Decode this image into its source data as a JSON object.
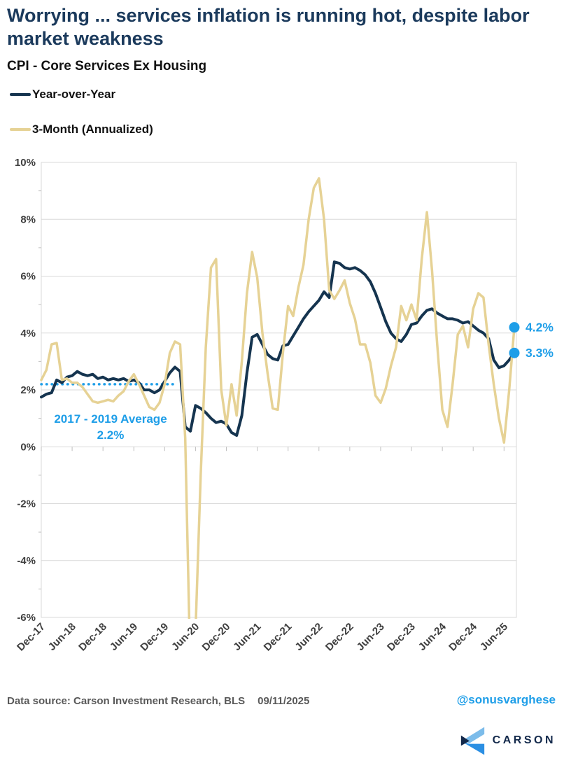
{
  "header": {
    "title": "Worrying ... services inflation is running hot, despite labor market weakness",
    "subtitle": "CPI - Core Services Ex Housing"
  },
  "legend": [
    {
      "label": "Year-over-Year",
      "color": "#15344F"
    },
    {
      "label": "3-Month (Annualized)",
      "color": "#E6D295"
    }
  ],
  "footer": {
    "source": "Data source: Carson Investment Research, BLS",
    "date": "09/11/2025",
    "handle": "@sonusvarghese",
    "logo_text": "CARSON"
  },
  "colors": {
    "title_navy": "#1B3A5C",
    "yoy_line": "#15344F",
    "three_month_line": "#E6D295",
    "accent_blue": "#1E9EE8",
    "gridline": "#D9D9D9",
    "axis_tick": "#BFBFBF",
    "axis_label": "#3F3F3F"
  },
  "chart_data": {
    "type": "line",
    "title": "CPI - Core Services Ex Housing",
    "xlabel": "",
    "ylabel": "",
    "ylim": [
      -6,
      10
    ],
    "grid": true,
    "x_unit": "month",
    "x_start": "Dec-17",
    "x_end": "Aug-25",
    "x_tick_labels": [
      "Dec-17",
      "Jun-18",
      "Dec-18",
      "Jun-19",
      "Dec-19",
      "Jun-20",
      "Dec-20",
      "Jun-21",
      "Dec-21",
      "Jun-22",
      "Dec-22",
      "Jun-23",
      "Dec-23",
      "Jun-24",
      "Dec-24",
      "Jun-25"
    ],
    "x_tick_month_indices": [
      0,
      6,
      12,
      18,
      24,
      30,
      36,
      42,
      48,
      54,
      60,
      66,
      72,
      78,
      84,
      90
    ],
    "yticks": [
      10,
      8,
      6,
      4,
      2,
      0,
      -2,
      -4,
      -6
    ],
    "ytick_labels": [
      "10%",
      "8%",
      "6%",
      "4%",
      "2%",
      "0%",
      "-2%",
      "-4%",
      "-6%"
    ],
    "series": [
      {
        "name": "Year-over-Year",
        "color": "#15344F",
        "values": [
          1.75,
          1.85,
          1.9,
          2.35,
          2.25,
          2.45,
          2.5,
          2.65,
          2.55,
          2.5,
          2.55,
          2.4,
          2.45,
          2.35,
          2.4,
          2.35,
          2.4,
          2.3,
          2.35,
          2.25,
          2.0,
          2.0,
          1.9,
          2.0,
          2.3,
          2.6,
          2.8,
          2.65,
          0.7,
          0.55,
          1.45,
          1.35,
          1.2,
          1.0,
          0.85,
          0.9,
          0.8,
          0.5,
          0.4,
          1.1,
          2.6,
          3.85,
          3.95,
          3.6,
          3.25,
          3.1,
          3.05,
          3.55,
          3.6,
          3.9,
          4.2,
          4.5,
          4.75,
          4.95,
          5.15,
          5.45,
          5.25,
          6.5,
          6.45,
          6.3,
          6.25,
          6.3,
          6.2,
          6.05,
          5.8,
          5.4,
          4.9,
          4.4,
          4.0,
          3.8,
          3.7,
          3.95,
          4.3,
          4.35,
          4.6,
          4.8,
          4.85,
          4.7,
          4.6,
          4.5,
          4.5,
          4.45,
          4.35,
          4.4,
          4.25,
          4.1,
          4.0,
          3.8,
          3.05,
          2.78,
          2.85,
          3.05,
          3.3
        ]
      },
      {
        "name": "3-Month (Annualized)",
        "color": "#E6D295",
        "values": [
          2.35,
          2.7,
          3.6,
          3.65,
          2.35,
          2.4,
          2.25,
          2.25,
          2.1,
          1.85,
          1.6,
          1.55,
          1.6,
          1.65,
          1.6,
          1.8,
          1.95,
          2.3,
          2.55,
          2.2,
          1.8,
          1.4,
          1.3,
          1.55,
          2.2,
          3.3,
          3.7,
          3.6,
          0.3,
          -8.0,
          -6.5,
          -1.0,
          3.5,
          6.3,
          6.6,
          2.0,
          0.75,
          2.2,
          1.1,
          3.0,
          5.4,
          6.85,
          5.95,
          4.0,
          2.6,
          1.35,
          1.3,
          3.3,
          4.95,
          4.6,
          5.6,
          6.4,
          8.0,
          9.1,
          9.44,
          8.0,
          5.5,
          5.2,
          5.5,
          5.85,
          5.05,
          4.5,
          3.6,
          3.6,
          2.95,
          1.8,
          1.55,
          2.05,
          2.85,
          3.5,
          4.95,
          4.45,
          5.0,
          4.45,
          6.6,
          8.25,
          6.2,
          3.6,
          1.3,
          0.7,
          2.2,
          3.95,
          4.25,
          3.5,
          4.85,
          5.4,
          5.25,
          3.6,
          2.2,
          1.0,
          0.15,
          2.0,
          4.2
        ]
      }
    ],
    "average_line": {
      "value": 2.2,
      "label_line1": "2017 - 2019 Average",
      "label_line2": "2.2%",
      "color": "#1E9EE8",
      "x_month_span": [
        0,
        26
      ]
    },
    "end_markers": [
      {
        "series": "3-Month (Annualized)",
        "value": 4.2,
        "label": "4.2%"
      },
      {
        "series": "Year-over-Year",
        "value": 3.3,
        "label": "3.3%"
      }
    ],
    "legend_position": "top-left"
  }
}
